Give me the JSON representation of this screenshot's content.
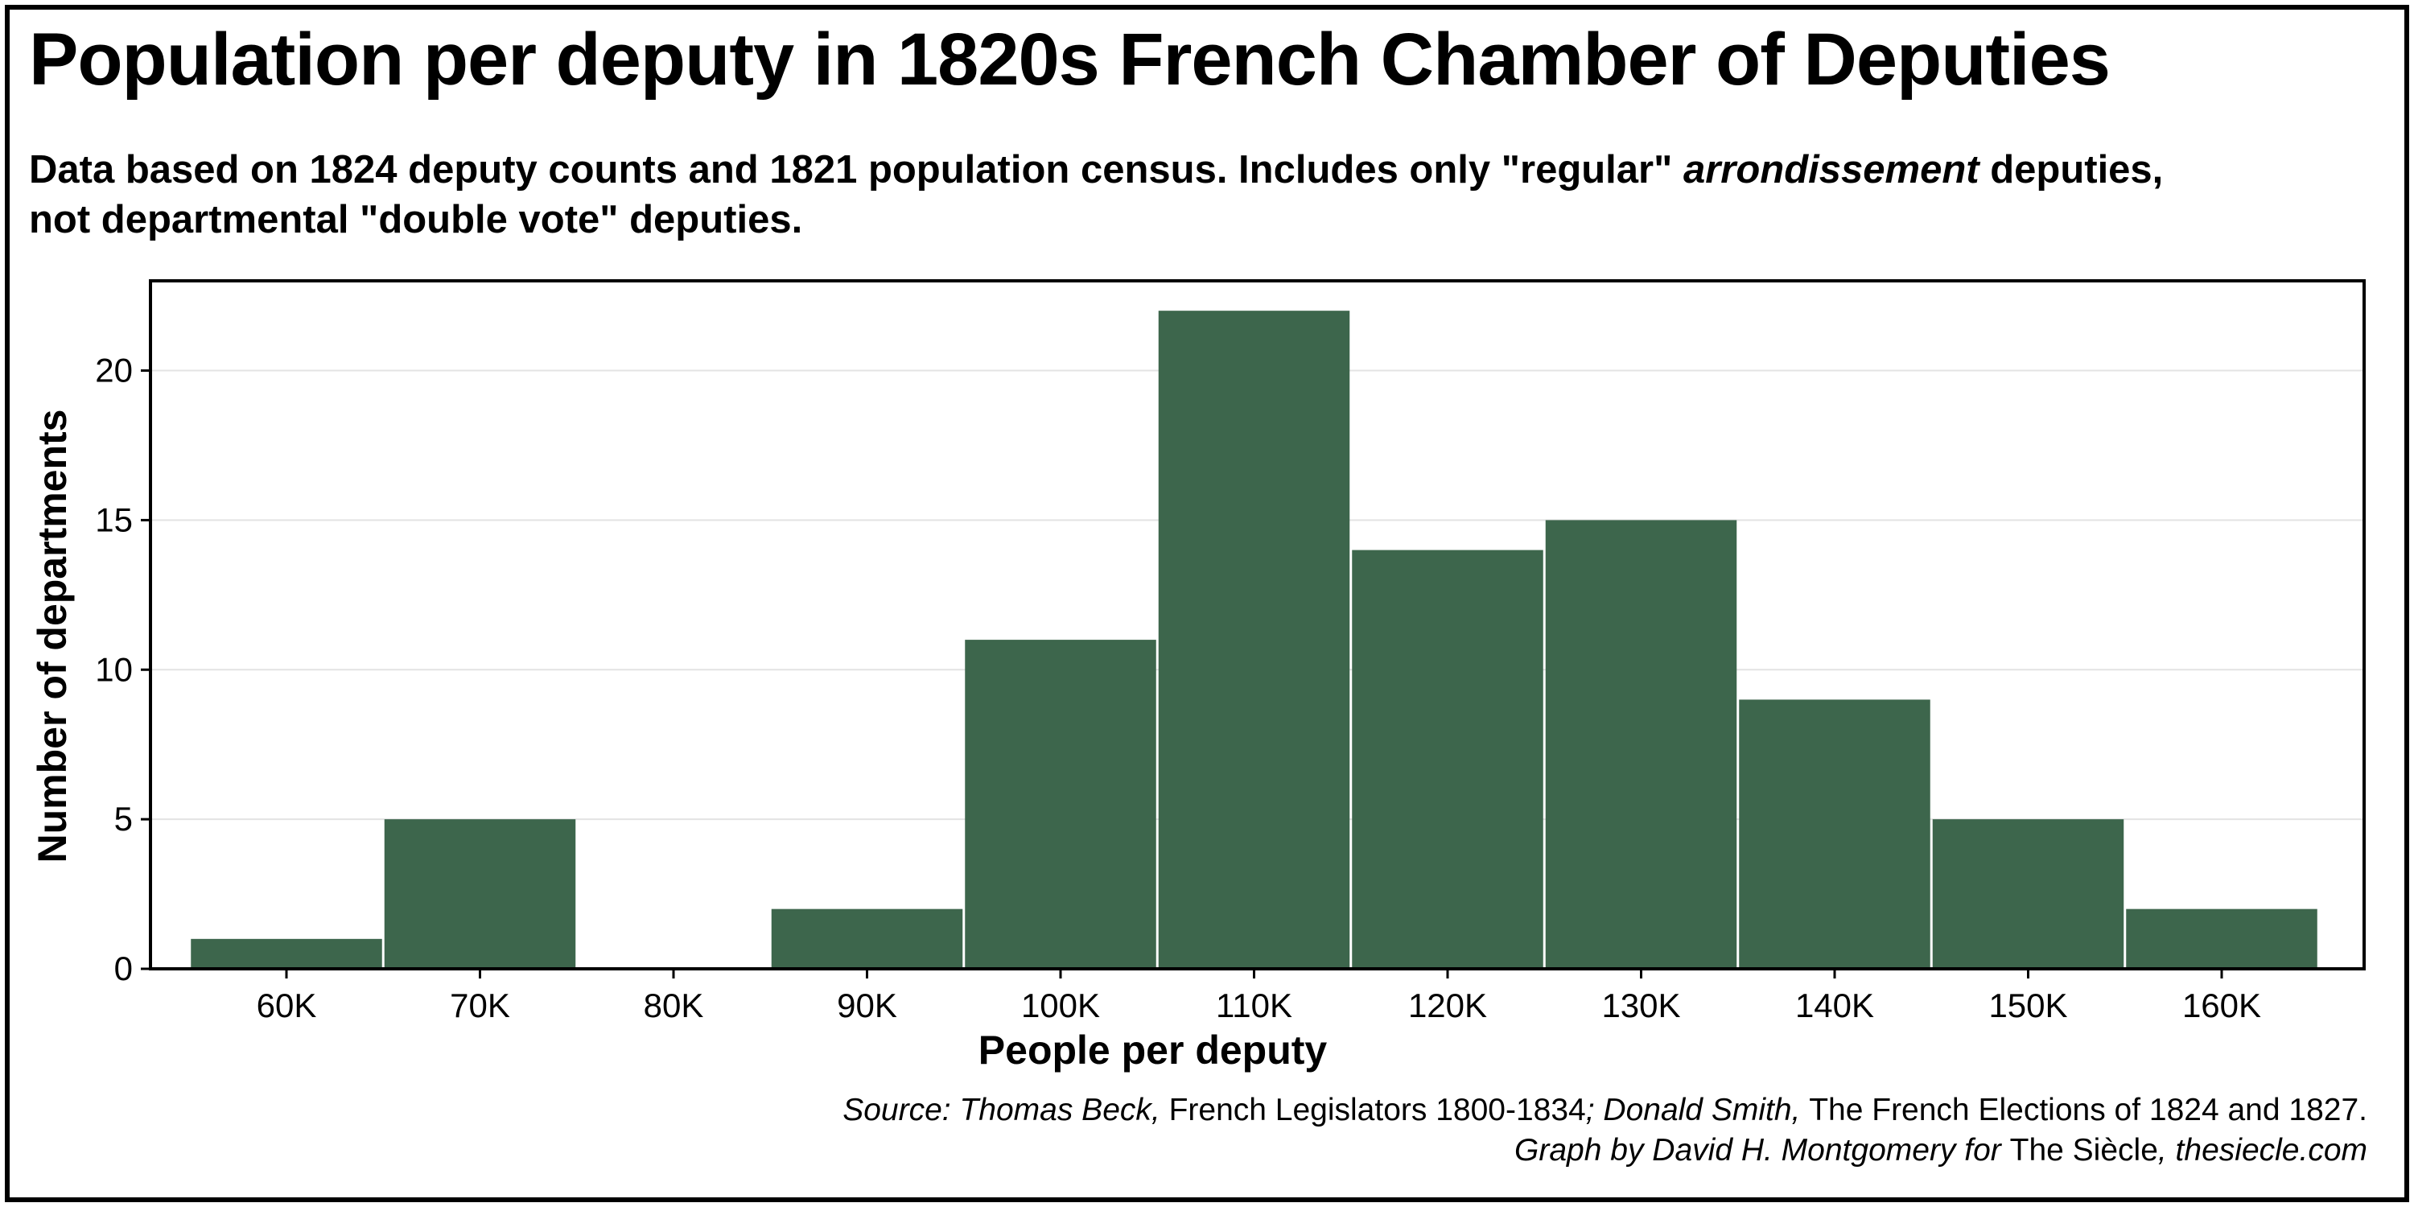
{
  "title": "Population per deputy in 1820s French Chamber of Deputies",
  "subtitle": {
    "part1": "Data based on 1824 deputy counts and 1821 population census. Includes only \"regular\" ",
    "part2_italic": "arrondissement",
    "part3": " deputies,",
    "line2": "not departmental \"double vote\" deputies."
  },
  "source": {
    "line1_prefix": "Source: Thomas Beck, ",
    "line1_book1": "French Legislators 1800-1834",
    "line1_mid": "; Donald Smith, ",
    "line1_book2": "The French Elections of 1824 and 1827.",
    "line2_prefix": "Graph by David H. Montgomery for ",
    "line2_pub": "The Siècle",
    "line2_suffix": ", thesiecle.com"
  },
  "colors": {
    "bar": "#3d664c",
    "grid": "#e3e3e3",
    "axis": "#000000"
  },
  "chart_data": {
    "type": "bar",
    "categories": [
      "60K",
      "70K",
      "80K",
      "90K",
      "100K",
      "110K",
      "120K",
      "130K",
      "140K",
      "150K",
      "160K"
    ],
    "values": [
      1,
      5,
      0,
      2,
      11,
      22,
      14,
      15,
      9,
      5,
      2
    ],
    "xlabel": "People per deputy",
    "ylabel": "Number of departments",
    "ylim": [
      0,
      23
    ],
    "yticks": [
      0,
      5,
      10,
      15,
      20
    ],
    "grid": "horizontal",
    "legend": "none"
  }
}
